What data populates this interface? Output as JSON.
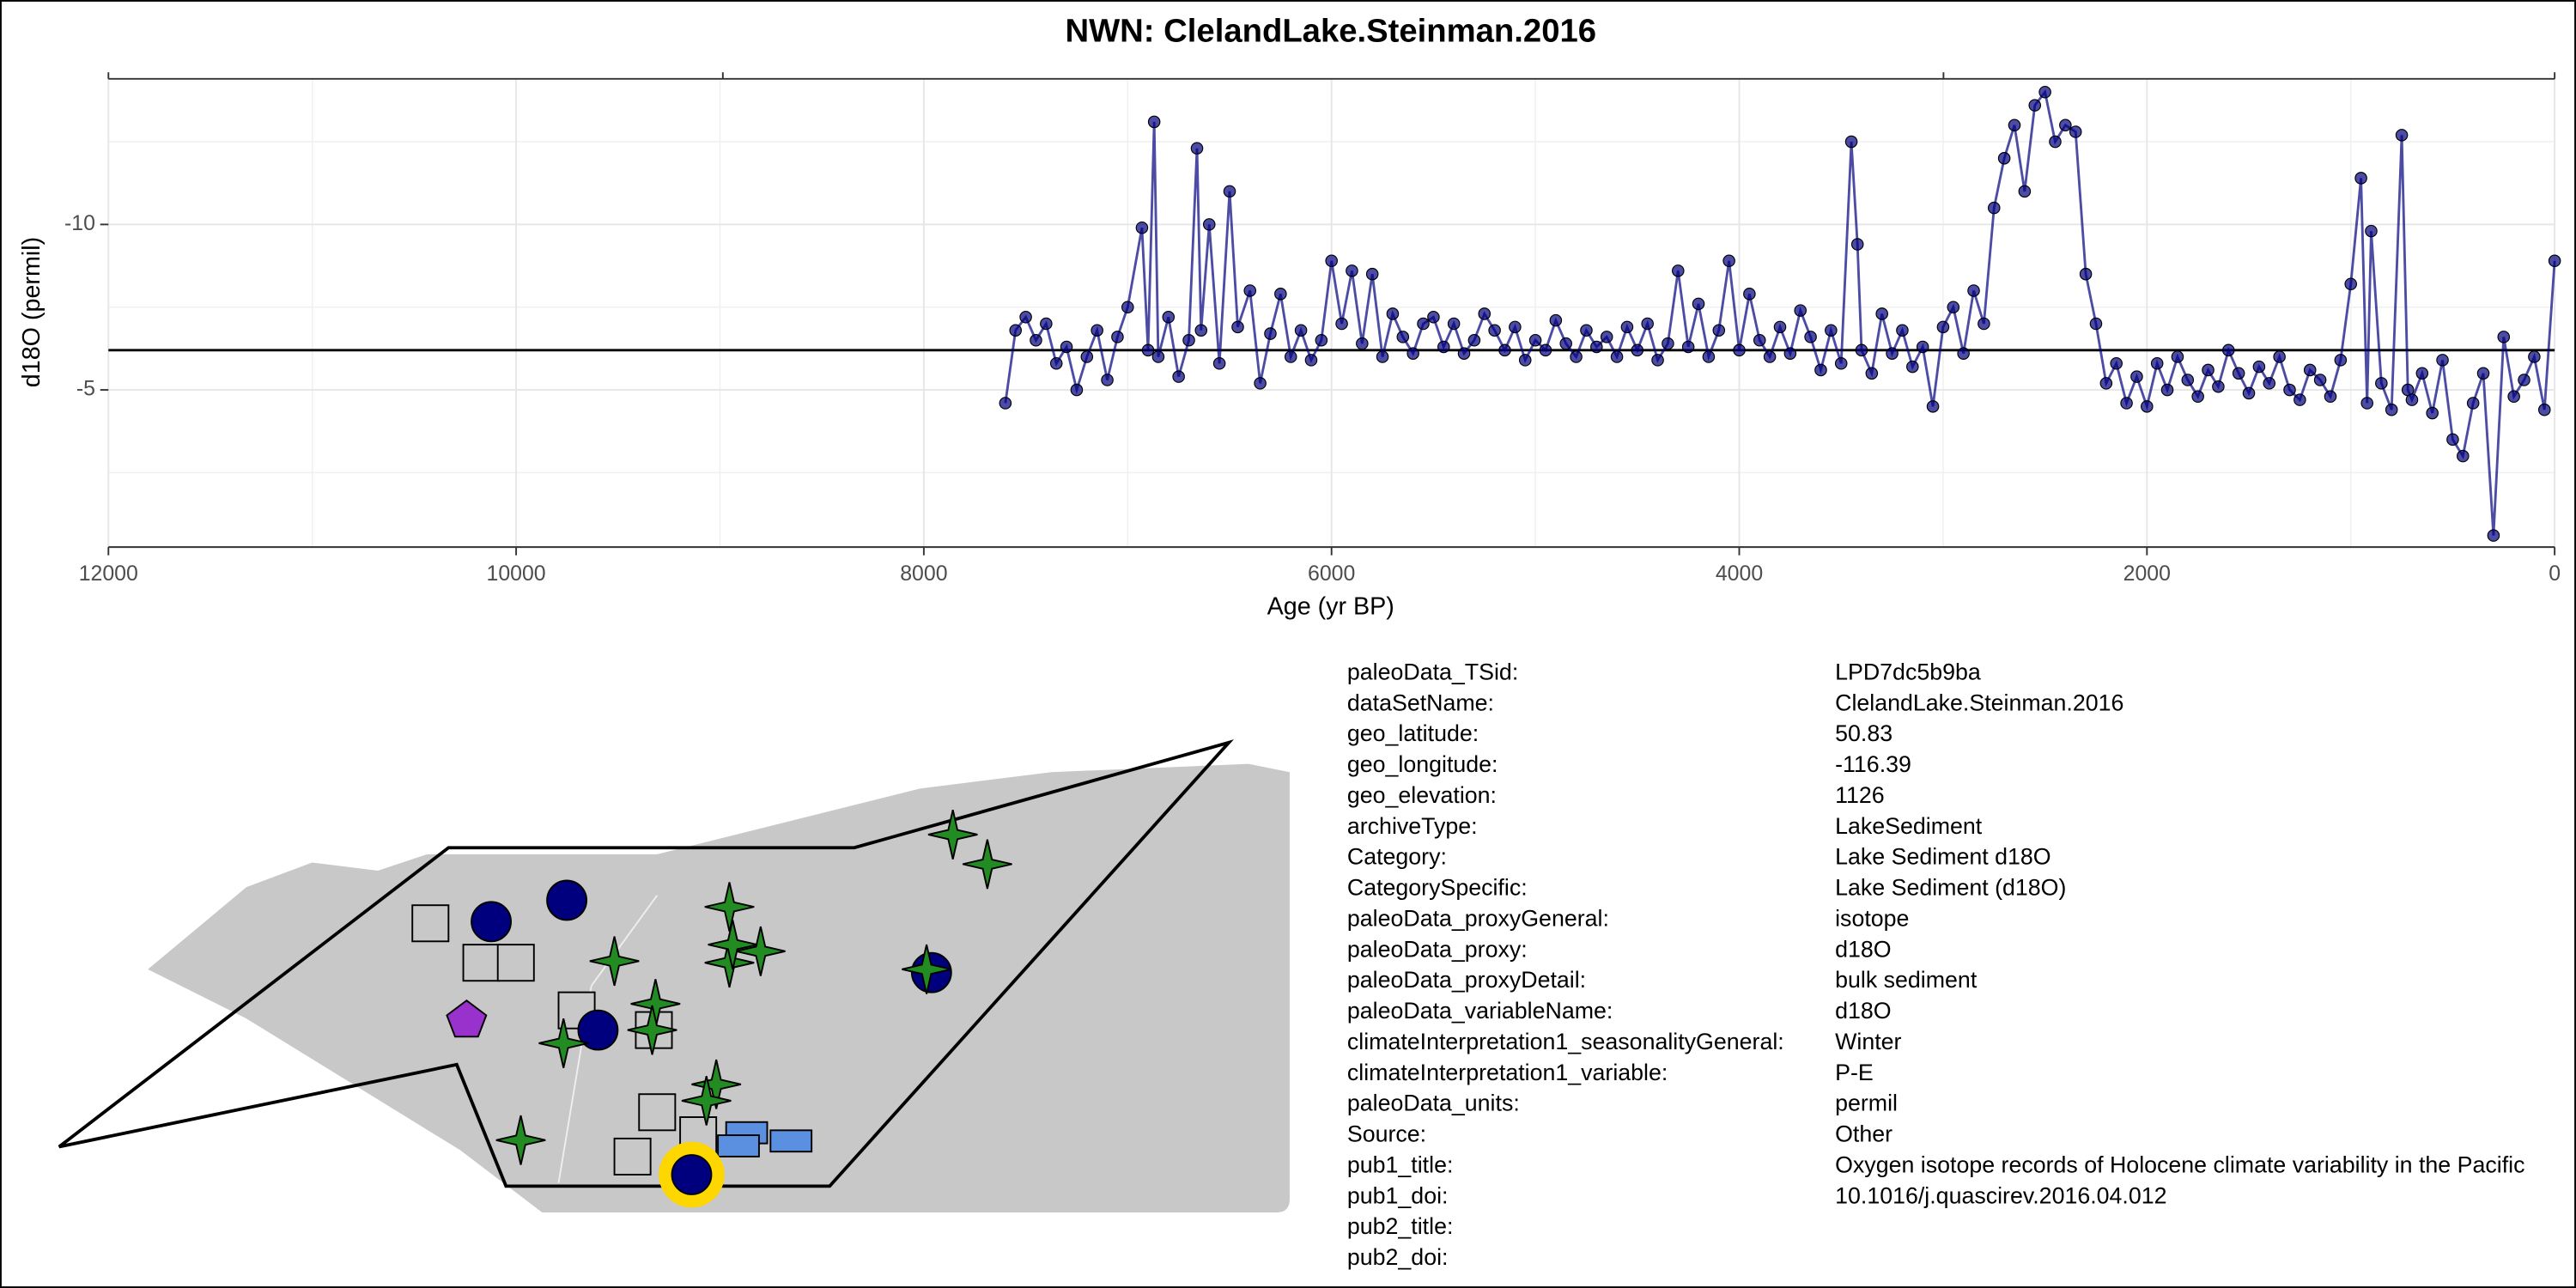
{
  "chart_data": {
    "type": "line",
    "title": "NWN: ClelandLake.Steinman.2016",
    "xlabel": "Age (yr BP)",
    "ylabel": "d18O (permil)",
    "xlim": [
      12000,
      0
    ],
    "xticks": [
      12000,
      10000,
      8000,
      6000,
      4000,
      2000,
      0
    ],
    "x_minor_grid": [
      11000,
      9000,
      7000,
      5000,
      3000,
      1000
    ],
    "ylim": [
      -0.25,
      -14.4
    ],
    "yticks": [
      -10,
      -5
    ],
    "y_minor_grid": [
      -12.5,
      -7.5,
      -2.5
    ],
    "grid": true,
    "reference_line": -6.2,
    "color": "#00007f",
    "x": [
      7600,
      7550,
      7500,
      7450,
      7400,
      7350,
      7300,
      7250,
      7200,
      7150,
      7100,
      7050,
      7000,
      6930,
      6900,
      6870,
      6850,
      6800,
      6750,
      6700,
      6660,
      6640,
      6600,
      6550,
      6500,
      6460,
      6400,
      6350,
      6300,
      6250,
      6200,
      6150,
      6100,
      6050,
      6000,
      5950,
      5900,
      5850,
      5800,
      5750,
      5700,
      5650,
      5600,
      5550,
      5500,
      5450,
      5400,
      5350,
      5300,
      5250,
      5200,
      5150,
      5100,
      5050,
      5000,
      4950,
      4900,
      4850,
      4800,
      4750,
      4700,
      4650,
      4600,
      4550,
      4500,
      4450,
      4400,
      4350,
      4300,
      4250,
      4200,
      4150,
      4100,
      4050,
      4000,
      3950,
      3900,
      3850,
      3800,
      3750,
      3700,
      3650,
      3600,
      3550,
      3500,
      3450,
      3420,
      3400,
      3350,
      3300,
      3250,
      3200,
      3150,
      3100,
      3050,
      3000,
      2950,
      2900,
      2850,
      2800,
      2750,
      2700,
      2650,
      2600,
      2550,
      2500,
      2450,
      2400,
      2350,
      2300,
      2250,
      2200,
      2150,
      2100,
      2050,
      2000,
      1950,
      1900,
      1850,
      1800,
      1750,
      1700,
      1650,
      1600,
      1550,
      1500,
      1450,
      1400,
      1350,
      1300,
      1250,
      1200,
      1150,
      1100,
      1050,
      1000,
      950,
      920,
      900,
      850,
      800,
      750,
      720,
      700,
      650,
      600,
      550,
      500,
      450,
      400,
      350,
      300,
      250,
      200,
      150,
      100,
      50,
      0
    ],
    "values": [
      -4.6,
      -6.8,
      -7.2,
      -6.5,
      -7.0,
      -5.8,
      -6.3,
      -5.0,
      -6.0,
      -6.8,
      -5.3,
      -6.6,
      -7.5,
      -9.9,
      -6.2,
      -13.1,
      -6.0,
      -7.2,
      -5.4,
      -6.5,
      -12.3,
      -6.8,
      -10.0,
      -5.8,
      -11.0,
      -6.9,
      -8.0,
      -5.2,
      -6.7,
      -7.9,
      -6.0,
      -6.8,
      -5.9,
      -6.5,
      -8.9,
      -7.0,
      -8.6,
      -6.4,
      -8.5,
      -6.0,
      -7.3,
      -6.6,
      -6.1,
      -7.0,
      -7.2,
      -6.3,
      -7.0,
      -6.1,
      -6.5,
      -7.3,
      -6.8,
      -6.2,
      -6.9,
      -5.9,
      -6.5,
      -6.2,
      -7.1,
      -6.4,
      -6.0,
      -6.8,
      -6.3,
      -6.6,
      -6.0,
      -6.9,
      -6.2,
      -7.0,
      -5.9,
      -6.4,
      -8.6,
      -6.3,
      -7.6,
      -6.0,
      -6.8,
      -8.9,
      -6.2,
      -7.9,
      -6.5,
      -6.0,
      -6.9,
      -6.1,
      -7.4,
      -6.6,
      -5.6,
      -6.8,
      -5.8,
      -12.5,
      -9.4,
      -6.2,
      -5.5,
      -7.3,
      -6.1,
      -6.8,
      -5.7,
      -6.3,
      -4.5,
      -6.9,
      -7.5,
      -6.1,
      -8.0,
      -7.0,
      -10.5,
      -12.0,
      -13.0,
      -11.0,
      -13.6,
      -14.0,
      -12.5,
      -13.0,
      -12.8,
      -8.5,
      -7.0,
      -5.2,
      -5.8,
      -4.6,
      -5.4,
      -4.5,
      -5.8,
      -5.0,
      -6.0,
      -5.3,
      -4.8,
      -5.6,
      -5.1,
      -6.2,
      -5.5,
      -4.9,
      -5.7,
      -5.2,
      -6.0,
      -5.0,
      -4.7,
      -5.6,
      -5.3,
      -4.8,
      -5.9,
      -8.2,
      -11.4,
      -4.6,
      -9.8,
      -5.2,
      -4.4,
      -12.7,
      -5.0,
      -4.7,
      -5.5,
      -4.3,
      -5.9,
      -3.5,
      -3.0,
      -4.6,
      -5.5,
      -0.6,
      -6.6,
      -4.8,
      -5.3,
      -6.0,
      -4.4,
      -8.9
    ]
  },
  "metadata": {
    "rows": [
      [
        "paleoData_TSid:",
        "LPD7dc5b9ba"
      ],
      [
        "dataSetName:",
        "ClelandLake.Steinman.2016"
      ],
      [
        "geo_latitude:",
        "50.83"
      ],
      [
        "geo_longitude:",
        "-116.39"
      ],
      [
        "geo_elevation:",
        "1126"
      ],
      [
        "archiveType:",
        "LakeSediment"
      ],
      [
        "Category:",
        "Lake Sediment d18O"
      ],
      [
        "CategorySpecific:",
        "Lake Sediment (d18O)"
      ],
      [
        "paleoData_proxyGeneral:",
        "isotope"
      ],
      [
        "paleoData_proxy:",
        "d18O"
      ],
      [
        "paleoData_proxyDetail:",
        "bulk sediment"
      ],
      [
        "paleoData_variableName:",
        "d18O"
      ],
      [
        "climateInterpretation1_seasonalityGeneral:",
        "Winter"
      ],
      [
        "climateInterpretation1_variable:",
        "P-E"
      ],
      [
        "paleoData_units:",
        "permil"
      ],
      [
        "Source:",
        "Other"
      ],
      [
        "pub1_title:",
        "Oxygen isotope records of Holocene climate variability in the Pacific"
      ],
      [
        "pub1_doi:",
        "10.1016/j.quascirev.2016.04.012"
      ],
      [
        "pub2_title:",
        ""
      ],
      [
        "pub2_doi:",
        ""
      ]
    ]
  }
}
